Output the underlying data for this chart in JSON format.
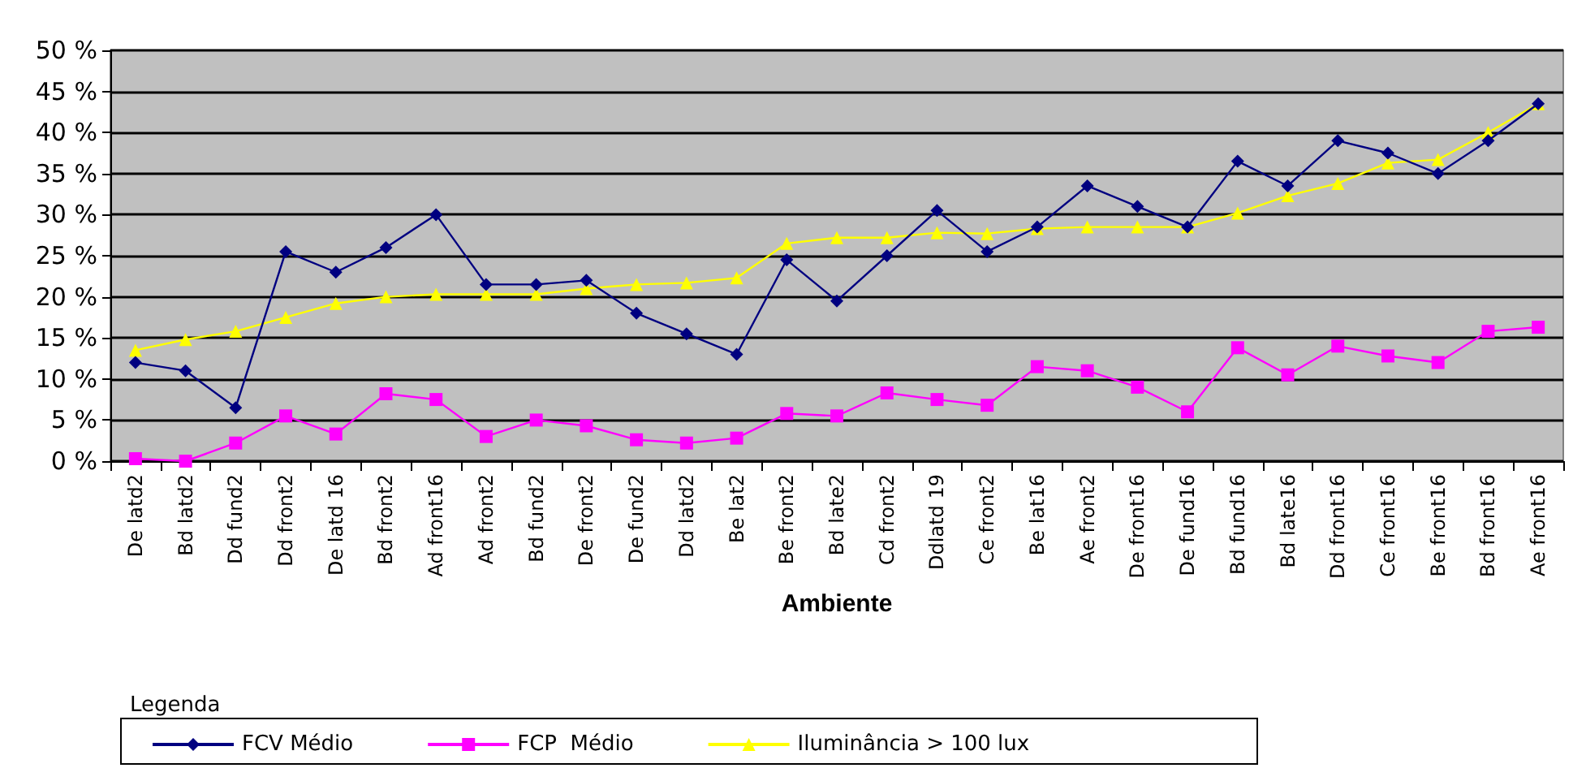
{
  "chart_data": {
    "type": "line",
    "xlabel": "Ambiente",
    "legend_title": "Legenda",
    "legend": "bottom",
    "grid": "y",
    "categories": [
      "De latd2",
      "Bd latd2",
      "Dd fund2",
      "Dd front2",
      "De latd 16",
      "Bd front2",
      "Ad front16",
      "Ad front2",
      "Bd fund2",
      "De front2",
      "De fund2",
      "Dd latd2",
      "Be lat2",
      "Be front2",
      "Bd late2",
      "Cd front2",
      "Ddlatd 19",
      "Ce front2",
      "Be lat16",
      "Ae front2",
      "De front16",
      "De fund16",
      "Bd fund16",
      "Bd late16",
      "Dd front16",
      "Ce front16",
      "Be front16",
      "Bd front16",
      "Ae front16"
    ],
    "ylim": [
      0,
      50
    ],
    "yticks": [
      {
        "value": 0,
        "label": "0 %"
      },
      {
        "value": 5,
        "label": "5 %"
      },
      {
        "value": 10,
        "label": "10 %"
      },
      {
        "value": 15,
        "label": "15 %"
      },
      {
        "value": 20,
        "label": "20 %"
      },
      {
        "value": 25,
        "label": "25 %"
      },
      {
        "value": 30,
        "label": "30 %"
      },
      {
        "value": 35,
        "label": "35 %"
      },
      {
        "value": 40,
        "label": "40 %"
      },
      {
        "value": 45,
        "label": "45 %"
      },
      {
        "value": 50,
        "label": "50 %"
      }
    ],
    "series": [
      {
        "name": "FCV Médio",
        "color": "#000080",
        "marker": "diamond",
        "values": [
          12,
          11,
          6.5,
          25.5,
          23,
          26,
          30,
          21.5,
          21.5,
          22,
          18,
          15.5,
          13,
          24.5,
          19.5,
          25,
          30.5,
          25.5,
          28.5,
          33.5,
          31,
          28.5,
          36.5,
          33.5,
          39,
          37.5,
          35,
          39,
          43.5
        ]
      },
      {
        "name": "FCP  Médio",
        "color": "#ff00ff",
        "marker": "square",
        "values": [
          0.3,
          0,
          2.2,
          5.5,
          3.3,
          8.2,
          7.5,
          3,
          5,
          4.3,
          2.6,
          2.2,
          2.8,
          5.8,
          5.5,
          8.3,
          7.5,
          6.8,
          11.5,
          11,
          9,
          6,
          13.8,
          10.5,
          14,
          12.8,
          12,
          15.8,
          16.3
        ]
      },
      {
        "name": "Iluminância > 100 lux",
        "color": "#ffff00",
        "marker": "triangle",
        "values": [
          13.5,
          14.8,
          15.8,
          17.5,
          19.2,
          20,
          20.3,
          20.3,
          20.3,
          21,
          21.5,
          21.7,
          22.3,
          26.5,
          27.2,
          27.2,
          27.8,
          27.7,
          28.3,
          28.5,
          28.5,
          28.5,
          30.2,
          32.3,
          33.8,
          36.3,
          36.7,
          40,
          43.5
        ]
      }
    ]
  }
}
